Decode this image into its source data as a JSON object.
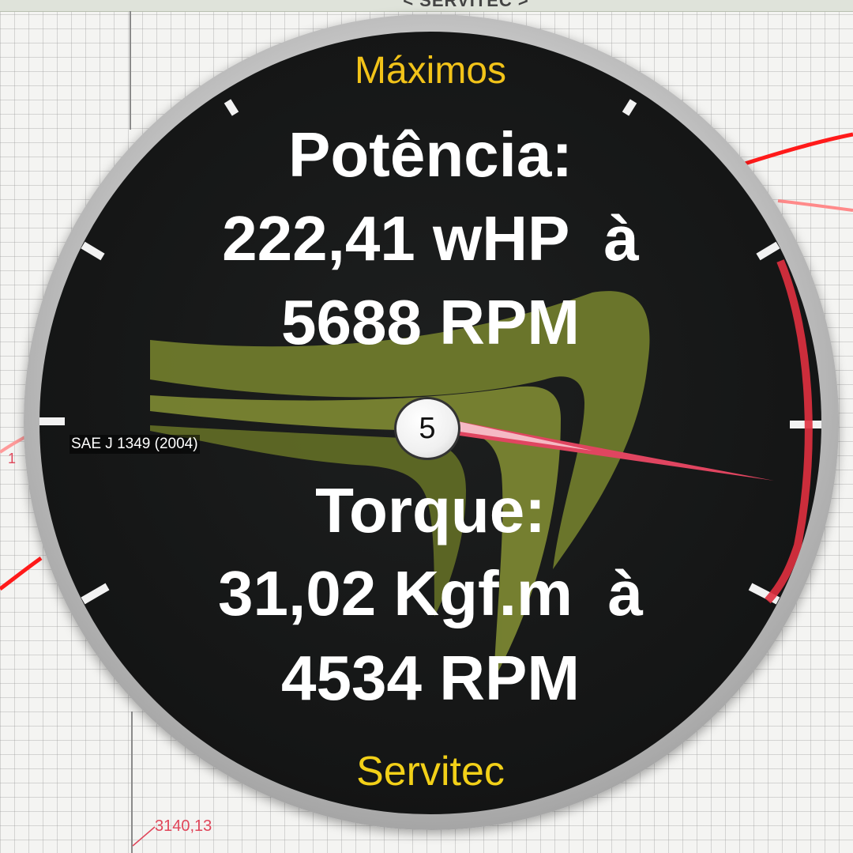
{
  "window": {
    "title": "< SERVITEC >"
  },
  "graph": {
    "x_axis_value": "3140,13",
    "left_clipped_label": "1"
  },
  "gauge": {
    "heading": "Máximos",
    "power": {
      "title": "Potência:",
      "value_line": "222,41 wHP  à",
      "rpm_line": "5688 RPM"
    },
    "torque": {
      "title": "Torque:",
      "value_line": "31,02 Kgf.m  à",
      "rpm_line": "4534 RPM"
    },
    "standard": "SAE J 1349 (2004)",
    "center_value": "5",
    "brand": "Servitec",
    "colors": {
      "heading": "#f2c319",
      "brand": "#f2d018",
      "face": "#151616",
      "logo": "#6f7a2c",
      "needle": "#e04560",
      "redline": "#e0303f"
    },
    "icons": [
      "servitec-logo-icon",
      "gauge-needle-icon"
    ]
  }
}
